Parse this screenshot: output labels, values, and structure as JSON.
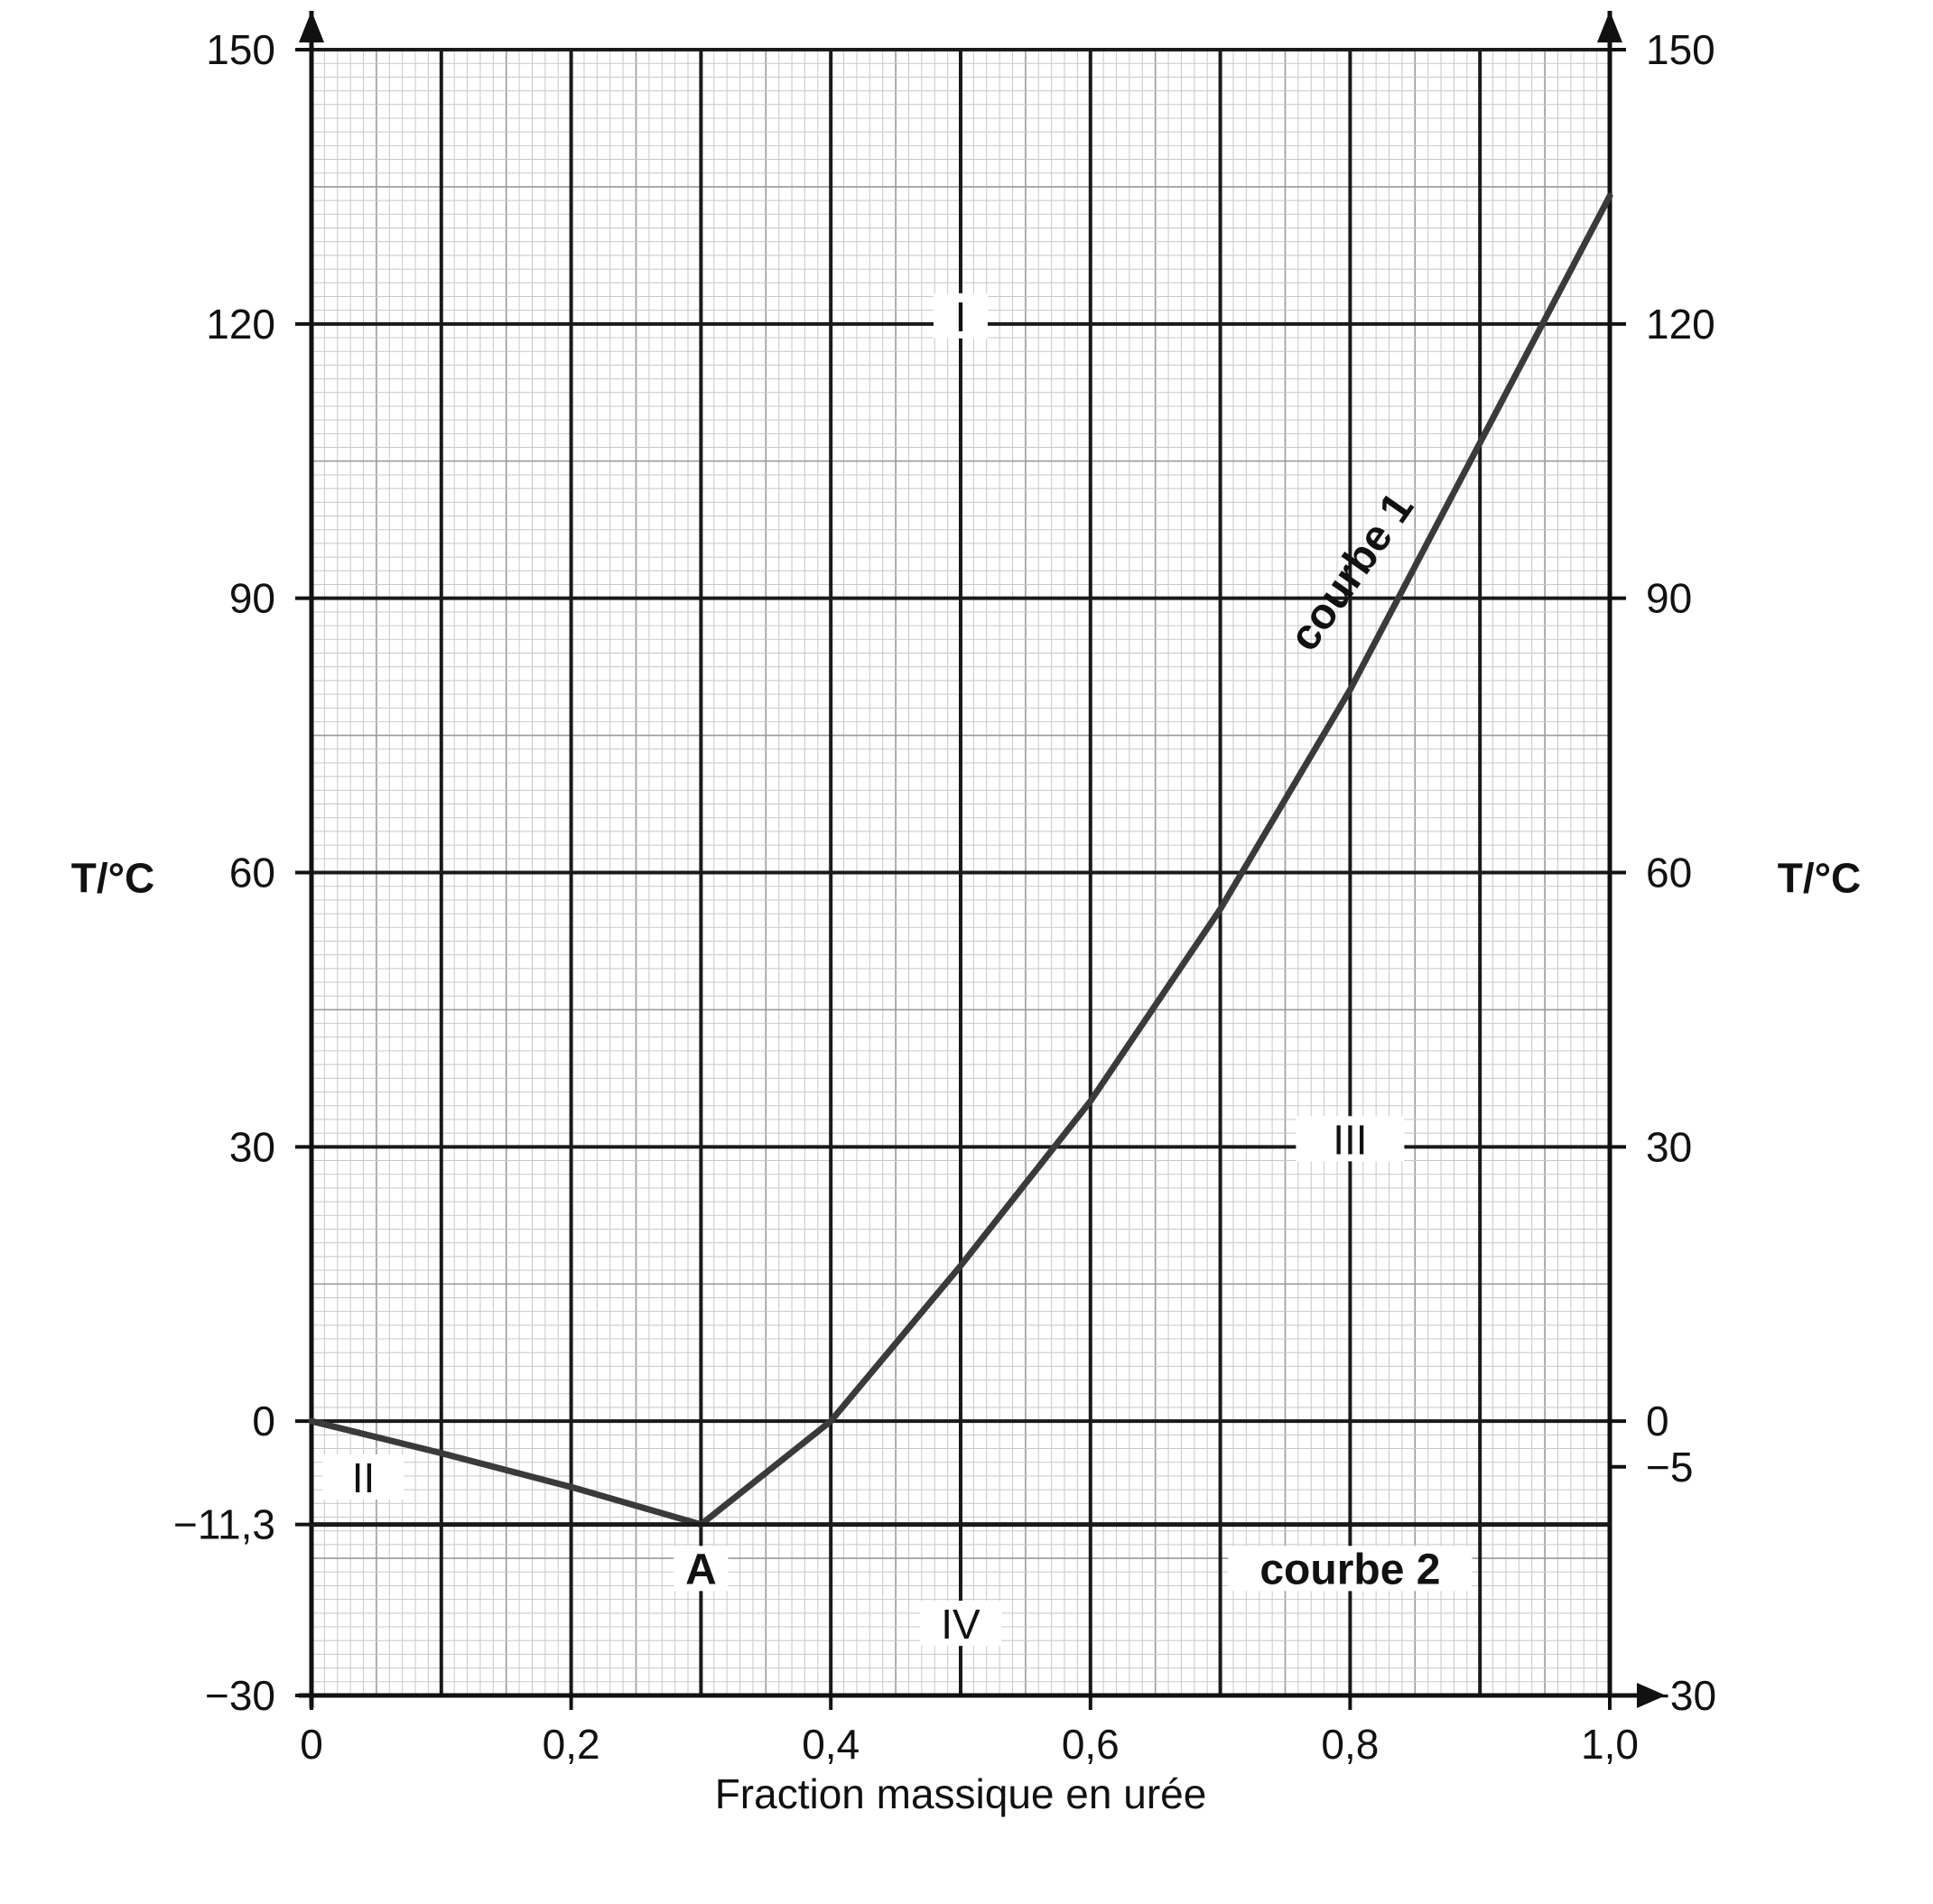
{
  "chart_data": {
    "type": "line",
    "title": "",
    "xlabel": "Fraction massique en urée",
    "ylabel": "T/°C",
    "xlim": [
      0,
      1.0
    ],
    "ylim": [
      -30,
      150
    ],
    "x_ticks": [
      {
        "value": 0,
        "label": "0"
      },
      {
        "value": 0.2,
        "label": "0,2"
      },
      {
        "value": 0.4,
        "label": "0,4"
      },
      {
        "value": 0.6,
        "label": "0,6"
      },
      {
        "value": 0.8,
        "label": "0,8"
      },
      {
        "value": 1.0,
        "label": "1,0"
      }
    ],
    "y_ticks_left": [
      {
        "value": 150,
        "label": "150"
      },
      {
        "value": 120,
        "label": "120"
      },
      {
        "value": 90,
        "label": "90"
      },
      {
        "value": 60,
        "label": "60"
      },
      {
        "value": 30,
        "label": "30"
      },
      {
        "value": 0,
        "label": "0"
      },
      {
        "value": -11.3,
        "label": "−11,3"
      },
      {
        "value": -30,
        "label": "−30"
      }
    ],
    "y_ticks_right": [
      {
        "value": 150,
        "label": "150"
      },
      {
        "value": 120,
        "label": "120"
      },
      {
        "value": 90,
        "label": "90"
      },
      {
        "value": 60,
        "label": "60"
      },
      {
        "value": 30,
        "label": "30"
      },
      {
        "value": 0,
        "label": "0"
      },
      {
        "value": -5,
        "label": "−5"
      },
      {
        "value": -30,
        "label": "−30"
      }
    ],
    "grid": true,
    "series": [
      {
        "name": "courbe 1",
        "x": [
          0,
          0.1,
          0.2,
          0.3,
          0.4,
          0.5,
          0.6,
          0.7,
          0.8,
          0.9,
          1.0
        ],
        "values": [
          0,
          -3.5,
          -7.2,
          -11.3,
          0,
          17,
          35,
          56,
          80,
          107,
          134
        ]
      },
      {
        "name": "courbe 2",
        "x": [
          0,
          1.0
        ],
        "values": [
          -11.3,
          -11.3
        ]
      }
    ],
    "annotations": [
      {
        "text": "I",
        "x": 0.5,
        "y": 120
      },
      {
        "text": "II",
        "x": 0.04,
        "y": -7
      },
      {
        "text": "III",
        "x": 0.8,
        "y": 30
      },
      {
        "text": "IV",
        "x": 0.5,
        "y": -23
      },
      {
        "text": "A",
        "x": 0.3,
        "y": -17
      },
      {
        "text": "courbe 1",
        "x": 0.81,
        "y": 92
      },
      {
        "text": "courbe 2",
        "x": 0.8,
        "y": -17
      }
    ]
  }
}
